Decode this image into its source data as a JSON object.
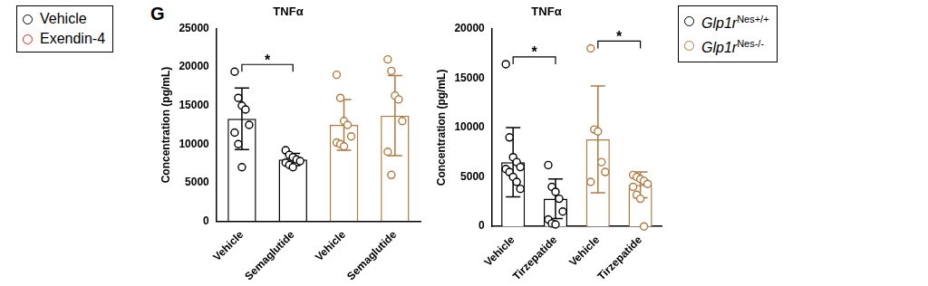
{
  "panel_label": "G",
  "legends": [
    {
      "entries": [
        {
          "name": "Vehicle",
          "color": "#000000"
        },
        {
          "name": "Exendin-4",
          "color": "#e8201c"
        }
      ]
    },
    {
      "entries": [
        {
          "name": "Glp1rNes+/+",
          "color": "#000000"
        },
        {
          "name": "Glp1rNes-/-",
          "color": "#b07a3e"
        }
      ]
    }
  ],
  "chart_data": [
    {
      "type": "bar",
      "title": "TNFα",
      "y_label": "Concentration (pg/mL)",
      "categories": [
        "Vehicle",
        "Semaglutide",
        "Vehicle",
        "Semaglutide"
      ],
      "values": [
        13300,
        8000,
        12500,
        13700
      ],
      "errors": [
        4000,
        800,
        3300,
        5200
      ],
      "points": [
        [
          19400,
          16000,
          15000,
          14500,
          12500,
          11500,
          10000,
          7000
        ],
        [
          9200,
          8600,
          8300,
          8000,
          7800,
          7600,
          7300,
          7000
        ],
        [
          19000,
          16000,
          13000,
          12500,
          11000,
          10200,
          10000,
          9700
        ],
        [
          21000,
          19500,
          16300,
          15800,
          13000,
          9000,
          6000
        ]
      ],
      "colors": [
        "#000000",
        "#000000",
        "#b07a3e",
        "#b07a3e"
      ],
      "ylim": [
        0,
        25000
      ],
      "yticks": [
        0,
        5000,
        10000,
        15000,
        20000,
        25000
      ],
      "grid": false,
      "annotations": [
        {
          "from": 0,
          "to": 1,
          "text": "*"
        }
      ]
    },
    {
      "type": "bar",
      "title": "TNFα",
      "y_label": "Concentration (pg/mL)",
      "categories": [
        "Vehicle",
        "Tirzepatide",
        "Vehicle",
        "Tirzepatide"
      ],
      "values": [
        6500,
        2800,
        8800,
        4200
      ],
      "errors": [
        3500,
        2000,
        5400,
        1300
      ],
      "points": [
        [
          16400,
          9000,
          7000,
          6500,
          6000,
          5800,
          5500,
          5000,
          4500,
          3800
        ],
        [
          6200,
          4000,
          3500,
          2800,
          1500,
          700,
          300,
          200
        ],
        [
          18000,
          9800,
          9600,
          6500,
          5500,
          4500
        ],
        [
          5200,
          5000,
          4800,
          4600,
          4300,
          4000,
          3200,
          2800,
          0
        ]
      ],
      "colors": [
        "#000000",
        "#000000",
        "#b07a3e",
        "#b07a3e"
      ],
      "ylim": [
        0,
        20000
      ],
      "yticks": [
        0,
        5000,
        10000,
        15000,
        20000
      ],
      "grid": false,
      "annotations": [
        {
          "from": 0,
          "to": 1,
          "text": "*"
        },
        {
          "from": 2,
          "to": 3,
          "text": "*"
        }
      ]
    }
  ]
}
